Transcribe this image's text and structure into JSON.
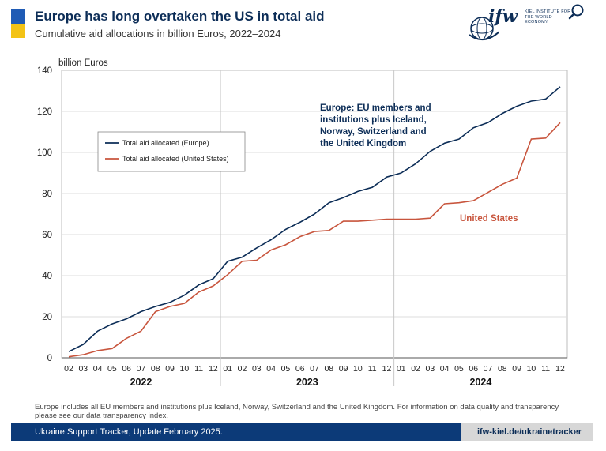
{
  "header": {
    "title": "Europe has long overtaken the US in total aid",
    "subtitle": "Cumulative aid allocations in billion Euros, 2022–2024",
    "logo_text": "ifw",
    "logo_subtext": "KIEL INSTITUTE FOR THE WORLD ECONOMY"
  },
  "footer": {
    "note": "Europe includes all EU members and institutions plus Iceland, Norway, Switzerland and the United Kingdom. For information on data quality and transparency please see our data transparency index.",
    "tracker": "Ukraine Support Tracker, Update February 2025.",
    "url": "ifw-kiel.de/ukrainetracker"
  },
  "colors": {
    "europe": "#0c2d57",
    "us": "#c8553d",
    "grid": "#dcdcdc",
    "flag_blue": "#1f5bb5",
    "flag_yellow": "#f3c316"
  },
  "chart_data": {
    "type": "line",
    "ylabel": "billion Euros",
    "ylim": [
      0,
      140
    ],
    "yticks": [
      0,
      20,
      40,
      60,
      80,
      100,
      120,
      140
    ],
    "x": [
      "02",
      "03",
      "04",
      "05",
      "06",
      "07",
      "08",
      "09",
      "10",
      "11",
      "12",
      "01",
      "02",
      "03",
      "04",
      "05",
      "06",
      "07",
      "08",
      "09",
      "10",
      "11",
      "12",
      "01",
      "02",
      "03",
      "04",
      "05",
      "06",
      "07",
      "08",
      "09",
      "10",
      "11",
      "12"
    ],
    "years": [
      {
        "label": "2022",
        "start": 0,
        "end": 10
      },
      {
        "label": "2023",
        "start": 11,
        "end": 22
      },
      {
        "label": "2024",
        "start": 23,
        "end": 34
      }
    ],
    "series": [
      {
        "name": "Total aid allocated (Europe)",
        "annotation": [
          "Europe: EU members and",
          "institutions plus Iceland,",
          "Norway, Switzerland and",
          "the United Kingdom"
        ],
        "values": [
          3,
          6.5,
          13,
          16.5,
          19,
          22.5,
          25,
          27,
          30.5,
          35.5,
          38.5,
          47,
          49,
          53.5,
          57.5,
          62.5,
          66,
          70,
          75.5,
          78,
          81,
          83,
          88,
          90,
          94.5,
          100.5,
          104.5,
          106.5,
          112,
          114.5,
          119,
          122.5,
          125,
          126,
          132
        ]
      },
      {
        "name": "Total aid allocated (United States)",
        "annotation": [
          "United States"
        ],
        "values": [
          0.5,
          1.5,
          3.5,
          4.5,
          9.5,
          13,
          22.5,
          25,
          26.5,
          32,
          35,
          40.5,
          47,
          47.5,
          52.5,
          55,
          59,
          61.5,
          62,
          66.5,
          66.5,
          67,
          67.5,
          67.5,
          67.5,
          68,
          75,
          75.5,
          76.5,
          80.5,
          84.5,
          87.5,
          106.5,
          107,
          114.5
        ]
      }
    ],
    "legend": "upper-left",
    "grid": true
  }
}
